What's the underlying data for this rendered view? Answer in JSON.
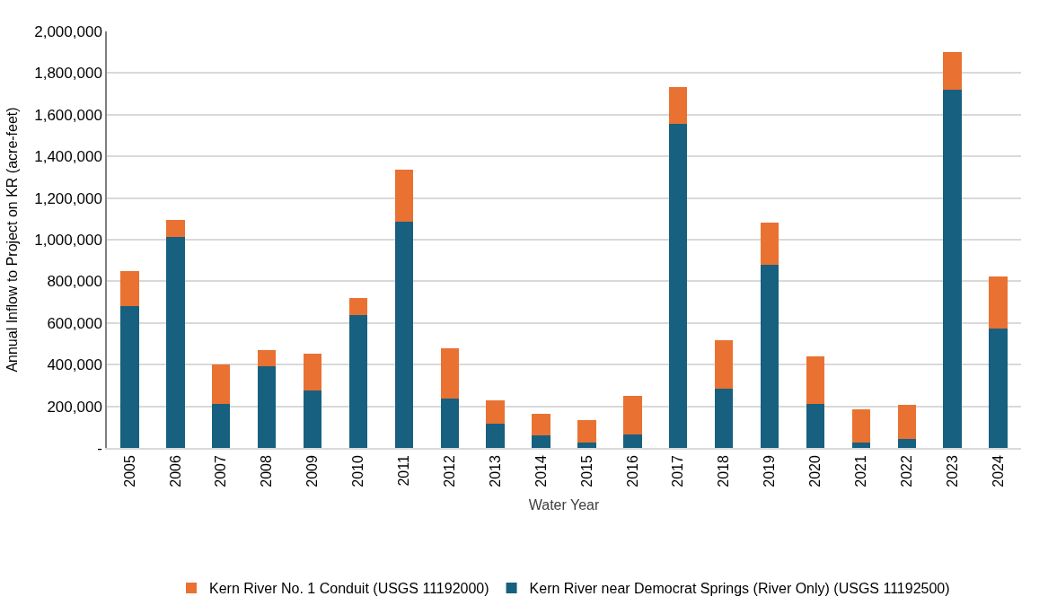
{
  "chart_data": {
    "type": "bar",
    "stacked": true,
    "xlabel": "Water Year",
    "ylabel": "Annual Inflow to Project on KR (acre-feet)",
    "categories": [
      "2005",
      "2006",
      "2007",
      "2008",
      "2009",
      "2010",
      "2011",
      "2012",
      "2013",
      "2014",
      "2015",
      "2016",
      "2017",
      "2018",
      "2019",
      "2020",
      "2021",
      "2022",
      "2023",
      "2024"
    ],
    "series": [
      {
        "name": "Kern River near Democrat Springs (River Only) (USGS 11192500)",
        "color": "#17607f",
        "values": [
          683000,
          1012000,
          213000,
          392000,
          278000,
          639000,
          1086000,
          238000,
          115000,
          59000,
          27000,
          63000,
          1555000,
          283000,
          879000,
          213000,
          27000,
          43000,
          1722000,
          573000
        ]
      },
      {
        "name": "Kern River No. 1 Conduit (USGS 11192000)",
        "color": "#e97132",
        "values": [
          168000,
          84000,
          187000,
          76000,
          174000,
          82000,
          252000,
          242000,
          114000,
          106000,
          106000,
          188000,
          179000,
          234000,
          201000,
          227000,
          157000,
          162000,
          180000,
          252000
        ]
      }
    ],
    "ylim": [
      0,
      2000000
    ],
    "yticks": [
      {
        "value": 0,
        "label": "-"
      },
      {
        "value": 200000,
        "label": "200,000"
      },
      {
        "value": 400000,
        "label": "400,000"
      },
      {
        "value": 600000,
        "label": "600,000"
      },
      {
        "value": 800000,
        "label": "800,000"
      },
      {
        "value": 1000000,
        "label": "1,000,000"
      },
      {
        "value": 1200000,
        "label": "1,200,000"
      },
      {
        "value": 1400000,
        "label": "1,400,000"
      },
      {
        "value": 1600000,
        "label": "1,600,000"
      },
      {
        "value": 1800000,
        "label": "1,800,000"
      },
      {
        "value": 2000000,
        "label": "2,000,000"
      }
    ],
    "grid": "y",
    "legend": "bottom"
  }
}
